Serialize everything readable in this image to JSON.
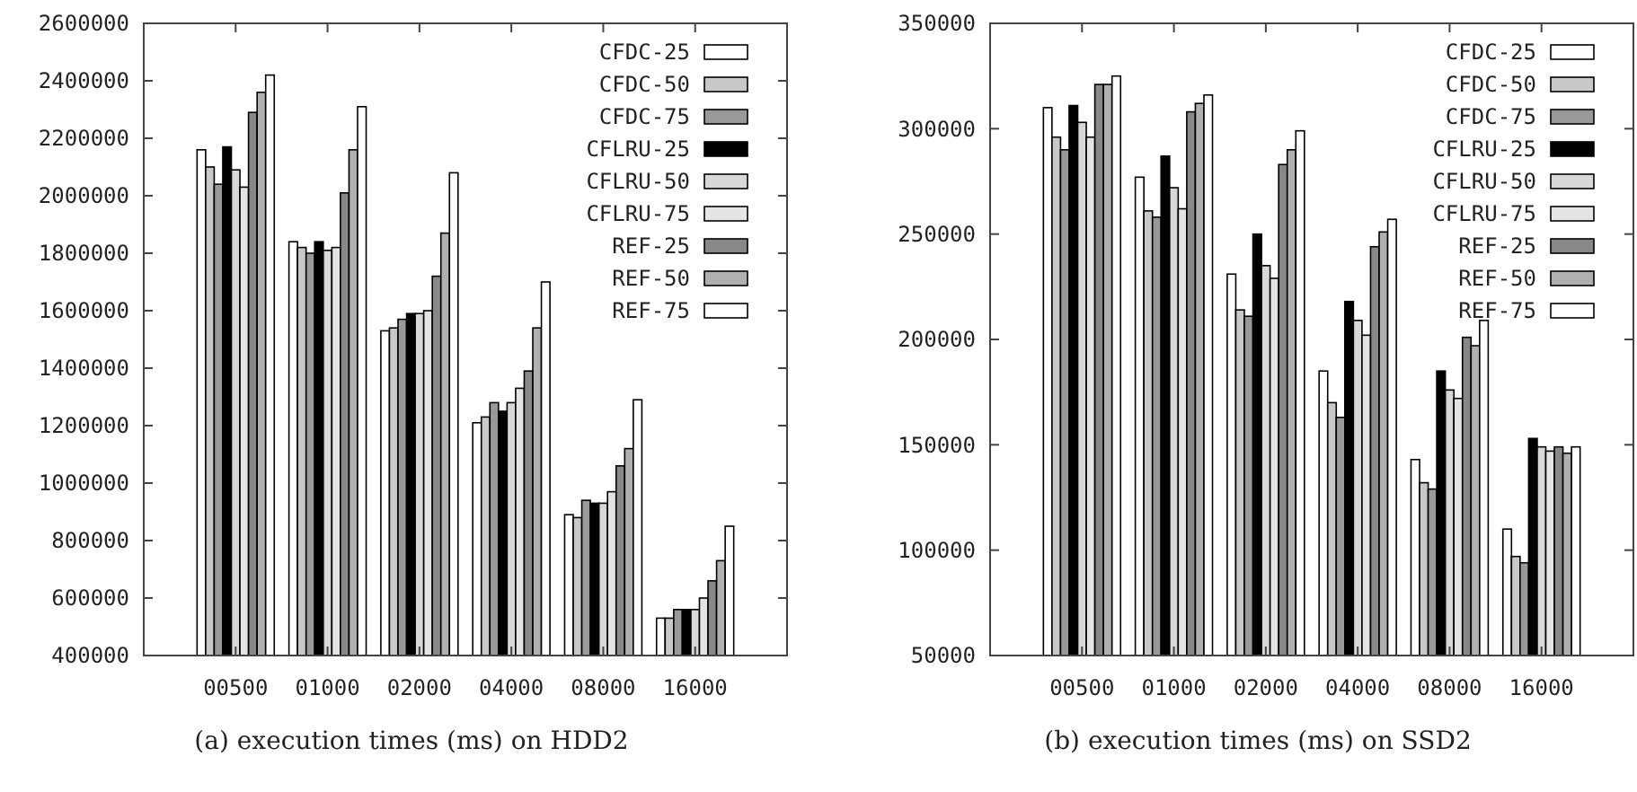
{
  "chart_data": [
    {
      "type": "bar",
      "title": "(a) execution times (ms) on HDD2",
      "categories": [
        "00500",
        "01000",
        "02000",
        "04000",
        "08000",
        "16000"
      ],
      "ylim": [
        400000,
        2600000
      ],
      "yticks": [
        400000,
        600000,
        800000,
        1000000,
        1200000,
        1400000,
        1600000,
        1800000,
        2000000,
        2200000,
        2400000,
        2600000
      ],
      "grid": false,
      "legend": "top right",
      "series": [
        {
          "name": "CFDC-25",
          "color": "#ffffff",
          "values": [
            2160000,
            1840000,
            1530000,
            1210000,
            890000,
            530000
          ]
        },
        {
          "name": "CFDC-50",
          "color": "#c8c8c8",
          "values": [
            2100000,
            1820000,
            1540000,
            1230000,
            880000,
            530000
          ]
        },
        {
          "name": "CFDC-75",
          "color": "#999999",
          "values": [
            2040000,
            1800000,
            1570000,
            1280000,
            940000,
            560000
          ]
        },
        {
          "name": "CFLRU-25",
          "color": "#000000",
          "values": [
            2170000,
            1840000,
            1590000,
            1250000,
            930000,
            560000
          ]
        },
        {
          "name": "CFLRU-50",
          "color": "#d8d8d8",
          "values": [
            2090000,
            1810000,
            1590000,
            1280000,
            930000,
            560000
          ]
        },
        {
          "name": "CFLRU-75",
          "color": "#e4e4e4",
          "values": [
            2030000,
            1820000,
            1600000,
            1330000,
            970000,
            600000
          ]
        },
        {
          "name": "REF-25",
          "color": "#888888",
          "values": [
            2290000,
            2010000,
            1720000,
            1390000,
            1060000,
            660000
          ]
        },
        {
          "name": "REF-50",
          "color": "#b0b0b0",
          "values": [
            2360000,
            2160000,
            1870000,
            1540000,
            1120000,
            730000
          ]
        },
        {
          "name": "REF-75",
          "color": "#ffffff",
          "values": [
            2420000,
            2310000,
            2080000,
            1700000,
            1290000,
            850000
          ]
        }
      ]
    },
    {
      "type": "bar",
      "title": "(b) execution times (ms) on SSD2",
      "categories": [
        "00500",
        "01000",
        "02000",
        "04000",
        "08000",
        "16000"
      ],
      "ylim": [
        50000,
        350000
      ],
      "yticks": [
        50000,
        100000,
        150000,
        200000,
        250000,
        300000,
        350000
      ],
      "grid": false,
      "legend": "top right",
      "series": [
        {
          "name": "CFDC-25",
          "color": "#ffffff",
          "values": [
            310000,
            277000,
            231000,
            185000,
            143000,
            110000
          ]
        },
        {
          "name": "CFDC-50",
          "color": "#c8c8c8",
          "values": [
            296000,
            261000,
            214000,
            170000,
            132000,
            97000
          ]
        },
        {
          "name": "CFDC-75",
          "color": "#999999",
          "values": [
            290000,
            258000,
            211000,
            163000,
            129000,
            94000
          ]
        },
        {
          "name": "CFLRU-25",
          "color": "#000000",
          "values": [
            311000,
            287000,
            250000,
            218000,
            185000,
            153000
          ]
        },
        {
          "name": "CFLRU-50",
          "color": "#d8d8d8",
          "values": [
            303000,
            272000,
            235000,
            209000,
            176000,
            149000
          ]
        },
        {
          "name": "CFLRU-75",
          "color": "#e4e4e4",
          "values": [
            296000,
            262000,
            229000,
            202000,
            172000,
            147000
          ]
        },
        {
          "name": "REF-25",
          "color": "#888888",
          "values": [
            321000,
            308000,
            283000,
            244000,
            201000,
            149000
          ]
        },
        {
          "name": "REF-50",
          "color": "#b0b0b0",
          "values": [
            321000,
            312000,
            290000,
            251000,
            197000,
            146000
          ]
        },
        {
          "name": "REF-75",
          "color": "#ffffff",
          "values": [
            325000,
            316000,
            299000,
            257000,
            209000,
            149000
          ]
        }
      ]
    }
  ]
}
